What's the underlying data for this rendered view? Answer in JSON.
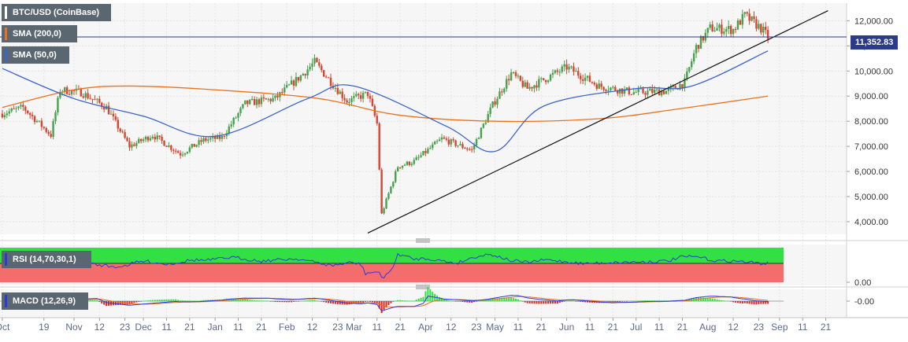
{
  "legend": {
    "main": "BTC/USD (CoinBase)",
    "sma200": "SMA (200,0)",
    "sma50": "SMA (50,0)",
    "rsi": "RSI (14,70,30,1)",
    "macd": "MACD (12,26,9)"
  },
  "colors": {
    "up": "#48a14d",
    "down": "#d9432f",
    "sma200": "#e8731d",
    "sma50": "#3b64c8",
    "trendline": "#111111",
    "hline": "#2b3a8a",
    "rsi_over": "#33e043",
    "rsi_under": "#f36d6d",
    "rsi_line": "#2e39d9",
    "macd_line": "#2e39d9",
    "signal_line": "#e8731d",
    "hist_pos": "#33e043",
    "hist_neg": "#e42323"
  },
  "current_price": "11,352.83",
  "chart_data": {
    "type": "candlestick",
    "title": "BTC/USD (CoinBase)",
    "ylim": [
      3500,
      12700
    ],
    "y_ticks": [
      "12,000.00",
      "11,000.00",
      "10,000.00",
      "9,000.00",
      "8,000.00",
      "7,000.00",
      "6,000.00",
      "5,000.00",
      "4,000.00"
    ],
    "y_tick_values": [
      12000,
      11000,
      10000,
      9000,
      8000,
      7000,
      6000,
      5000,
      4000
    ],
    "x_tick_labels": [
      "Oct",
      "19",
      "Nov",
      "12",
      "23",
      "Dec",
      "11",
      "21",
      "Jan",
      "11",
      "21",
      "Feb",
      "12",
      "23",
      "Mar",
      "11",
      "21",
      "Apr",
      "12",
      "23",
      "May",
      "11",
      "21",
      "Jun",
      "11",
      "21",
      "Jul",
      "11",
      "21",
      "Aug",
      "12",
      "23",
      "Sep",
      "11",
      "21"
    ],
    "price_path": [
      {
        "date": "2019-10-01",
        "close": 8300
      },
      {
        "date": "2019-10-10",
        "close": 8550
      },
      {
        "date": "2019-10-22",
        "close": 7450
      },
      {
        "date": "2019-10-26",
        "close": 9250
      },
      {
        "date": "2019-11-04",
        "close": 9150
      },
      {
        "date": "2019-11-15",
        "close": 8550
      },
      {
        "date": "2019-11-25",
        "close": 7000
      },
      {
        "date": "2019-12-05",
        "close": 7450
      },
      {
        "date": "2019-12-17",
        "close": 6700
      },
      {
        "date": "2019-12-27",
        "close": 7250
      },
      {
        "date": "2020-01-04",
        "close": 7350
      },
      {
        "date": "2020-01-14",
        "close": 8700
      },
      {
        "date": "2020-01-27",
        "close": 8900
      },
      {
        "date": "2020-02-07",
        "close": 9800
      },
      {
        "date": "2020-02-13",
        "close": 10350
      },
      {
        "date": "2020-02-27",
        "close": 8800
      },
      {
        "date": "2020-03-07",
        "close": 9100
      },
      {
        "date": "2020-03-11",
        "close": 7900
      },
      {
        "date": "2020-03-13",
        "close": 4300
      },
      {
        "date": "2020-03-20",
        "close": 6200
      },
      {
        "date": "2020-03-27",
        "close": 6400
      },
      {
        "date": "2020-04-08",
        "close": 7300
      },
      {
        "date": "2020-04-21",
        "close": 6850
      },
      {
        "date": "2020-04-30",
        "close": 8650
      },
      {
        "date": "2020-05-08",
        "close": 9900
      },
      {
        "date": "2020-05-15",
        "close": 9300
      },
      {
        "date": "2020-06-01",
        "close": 10150
      },
      {
        "date": "2020-06-15",
        "close": 9400
      },
      {
        "date": "2020-06-30",
        "close": 9150
      },
      {
        "date": "2020-07-15",
        "close": 9200
      },
      {
        "date": "2020-07-22",
        "close": 9550
      },
      {
        "date": "2020-07-27",
        "close": 10950
      },
      {
        "date": "2020-08-02",
        "close": 11700
      },
      {
        "date": "2020-08-12",
        "close": 11650
      },
      {
        "date": "2020-08-17",
        "close": 12200
      },
      {
        "date": "2020-08-24",
        "close": 11700
      },
      {
        "date": "2020-08-27",
        "close": 11350
      }
    ],
    "sma200": [
      {
        "date": "2019-10-01",
        "value": 8550
      },
      {
        "date": "2019-11-01",
        "value": 9250
      },
      {
        "date": "2019-11-25",
        "value": 9400
      },
      {
        "date": "2020-01-01",
        "value": 9250
      },
      {
        "date": "2020-02-15",
        "value": 8900
      },
      {
        "date": "2020-03-20",
        "value": 8250
      },
      {
        "date": "2020-05-01",
        "value": 8000
      },
      {
        "date": "2020-06-15",
        "value": 8100
      },
      {
        "date": "2020-07-20",
        "value": 8500
      },
      {
        "date": "2020-08-27",
        "value": 9000
      }
    ],
    "sma50": [
      {
        "date": "2019-10-01",
        "value": 10100
      },
      {
        "date": "2019-11-01",
        "value": 8900
      },
      {
        "date": "2019-12-01",
        "value": 8200
      },
      {
        "date": "2020-01-01",
        "value": 7400
      },
      {
        "date": "2020-02-10",
        "value": 8900
      },
      {
        "date": "2020-03-01",
        "value": 9400
      },
      {
        "date": "2020-04-10",
        "value": 7800
      },
      {
        "date": "2020-05-01",
        "value": 6800
      },
      {
        "date": "2020-05-22",
        "value": 8600
      },
      {
        "date": "2020-07-01",
        "value": 9300
      },
      {
        "date": "2020-07-25",
        "value": 9400
      },
      {
        "date": "2020-08-27",
        "value": 10800
      }
    ],
    "trendline": [
      {
        "date": "2020-03-07",
        "value": 3550
      },
      {
        "date": "2020-09-22",
        "value": 12400
      }
    ],
    "hline": 11352.83,
    "rsi": {
      "title": "RSI (14,70,30,1)",
      "tick": "0.00",
      "overbought": 70,
      "oversold": 30
    },
    "macd": {
      "title": "MACD (12,26,9)",
      "tick": "-0.00"
    }
  }
}
